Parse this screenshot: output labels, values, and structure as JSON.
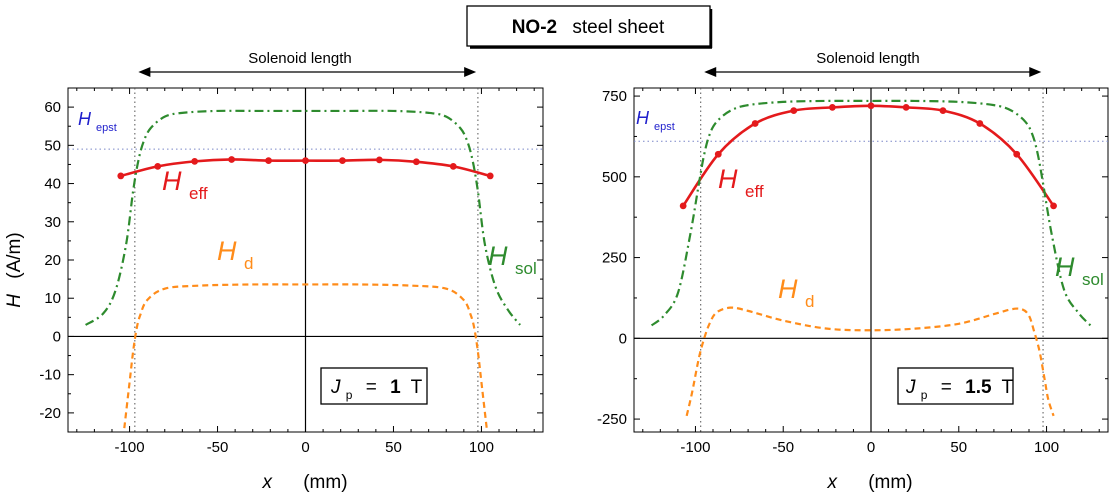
{
  "title": {
    "bold": "NO-2",
    "rest": "steel sheet"
  },
  "colors": {
    "eff": "#e41a1c",
    "sol": "#2e8b2e",
    "d": "#ff8c1a",
    "epst": "#1f1fcc"
  },
  "chart_data": [
    {
      "type": "line",
      "annotation_top": "Solenoid length",
      "xlabel_symbol": "x",
      "xlabel_unit": "(mm)",
      "ylabel_symbol": "H",
      "ylabel_unit": "(A/m)",
      "xlim": [
        -135,
        135
      ],
      "ylim": [
        -25,
        65
      ],
      "xticks": [
        -100,
        -50,
        0,
        50,
        100
      ],
      "yticks": [
        -20,
        -10,
        0,
        10,
        20,
        30,
        40,
        50,
        60
      ],
      "ytick_labels": [
        "-20",
        "-10",
        "0",
        "10",
        "20",
        "30",
        "40",
        "50",
        "60"
      ],
      "solenoid_ends": [
        -97,
        98
      ],
      "solenoid_arrow": [
        -95,
        97
      ],
      "h_epst": 49,
      "labels": {
        "h_epst": {
          "main": "H",
          "sub": "epst"
        },
        "h_eff": {
          "main": "H",
          "sub": "eff"
        },
        "h_sol": {
          "main": "H",
          "sub": "sol"
        },
        "h_d": {
          "main": "H",
          "sub": "d"
        }
      },
      "jp_box": {
        "sym": "J",
        "sub": "p",
        "eq": "=",
        "value": "1",
        "unit": "T"
      },
      "series": [
        {
          "name": "H_eff",
          "style": "solid-markers",
          "x": [
            -105,
            -84,
            -63,
            -42,
            -21,
            0,
            21,
            42,
            63,
            84,
            105
          ],
          "y": [
            42,
            44.5,
            45.8,
            46.3,
            46,
            46,
            46,
            46.2,
            45.7,
            44.5,
            42
          ]
        },
        {
          "name": "H_sol",
          "style": "dashdot",
          "x": [
            -125,
            -115,
            -108,
            -102,
            -98,
            -95,
            -92,
            -88,
            -80,
            -70,
            -50,
            -25,
            0,
            25,
            50,
            70,
            80,
            88,
            92,
            95,
            98,
            102,
            108,
            115,
            122
          ],
          "y": [
            3,
            6,
            12,
            24,
            38,
            46,
            51,
            54.5,
            57.5,
            58.5,
            59,
            59,
            59,
            59,
            59,
            58.5,
            57.5,
            54.5,
            51,
            46,
            38,
            24,
            13,
            7,
            3
          ]
        },
        {
          "name": "H_d",
          "style": "dashed",
          "x": [
            -103,
            -100,
            -98,
            -96,
            -94,
            -90,
            -80,
            -60,
            -30,
            0,
            30,
            60,
            80,
            90,
            94,
            96,
            98,
            100,
            103
          ],
          "y": [
            -24,
            -12,
            -4,
            2,
            5.5,
            9.5,
            12.5,
            13.3,
            13.6,
            13.6,
            13.6,
            13.3,
            12.5,
            9.5,
            5.5,
            2,
            -4,
            -12,
            -24
          ]
        }
      ]
    },
    {
      "type": "line",
      "annotation_top": "Solenoid length",
      "xlabel_symbol": "x",
      "xlabel_unit": "(mm)",
      "ylabel_symbol": "",
      "ylabel_unit": "",
      "xlim": [
        -135,
        135
      ],
      "ylim": [
        -290,
        775
      ],
      "xticks": [
        -100,
        -50,
        0,
        50,
        100
      ],
      "yticks": [
        -250,
        0,
        250,
        500,
        750
      ],
      "ytick_labels": [
        "-250",
        "0",
        "250",
        "500",
        "750"
      ],
      "solenoid_ends": [
        -97,
        98
      ],
      "solenoid_arrow": [
        -95,
        97
      ],
      "h_epst": 610,
      "labels": {
        "h_epst": {
          "main": "H",
          "sub": "epst"
        },
        "h_eff": {
          "main": "H",
          "sub": "eff"
        },
        "h_sol": {
          "main": "H",
          "sub": "sol"
        },
        "h_d": {
          "main": "H",
          "sub": "d"
        }
      },
      "jp_box": {
        "sym": "J",
        "sub": "p",
        "eq": "=",
        "value": "1.5",
        "unit": "T"
      },
      "series": [
        {
          "name": "H_eff",
          "style": "solid-markers",
          "x": [
            -107,
            -87,
            -66,
            -44,
            -22,
            0,
            20,
            41,
            62,
            83,
            104
          ],
          "y": [
            410,
            570,
            665,
            705,
            715,
            720,
            715,
            705,
            665,
            570,
            410
          ]
        },
        {
          "name": "H_sol",
          "style": "dashdot",
          "x": [
            -125,
            -118,
            -110,
            -103,
            -98,
            -95,
            -92,
            -88,
            -80,
            -70,
            -50,
            -25,
            0,
            25,
            50,
            70,
            80,
            88,
            92,
            95,
            98,
            103,
            110,
            118,
            125
          ],
          "y": [
            40,
            70,
            140,
            320,
            480,
            570,
            630,
            670,
            705,
            722,
            732,
            735,
            735,
            735,
            732,
            722,
            705,
            670,
            630,
            570,
            480,
            320,
            150,
            80,
            40
          ]
        },
        {
          "name": "H_d",
          "style": "dashed",
          "x": [
            -105,
            -102,
            -98,
            -95,
            -92,
            -88,
            -80,
            -70,
            -50,
            -25,
            0,
            25,
            50,
            70,
            80,
            86,
            90,
            93,
            96,
            99,
            101,
            104
          ],
          "y": [
            -240,
            -170,
            -60,
            0,
            45,
            80,
            95,
            85,
            55,
            30,
            25,
            30,
            45,
            75,
            90,
            90,
            70,
            20,
            -40,
            -130,
            -190,
            -240
          ]
        }
      ]
    }
  ]
}
